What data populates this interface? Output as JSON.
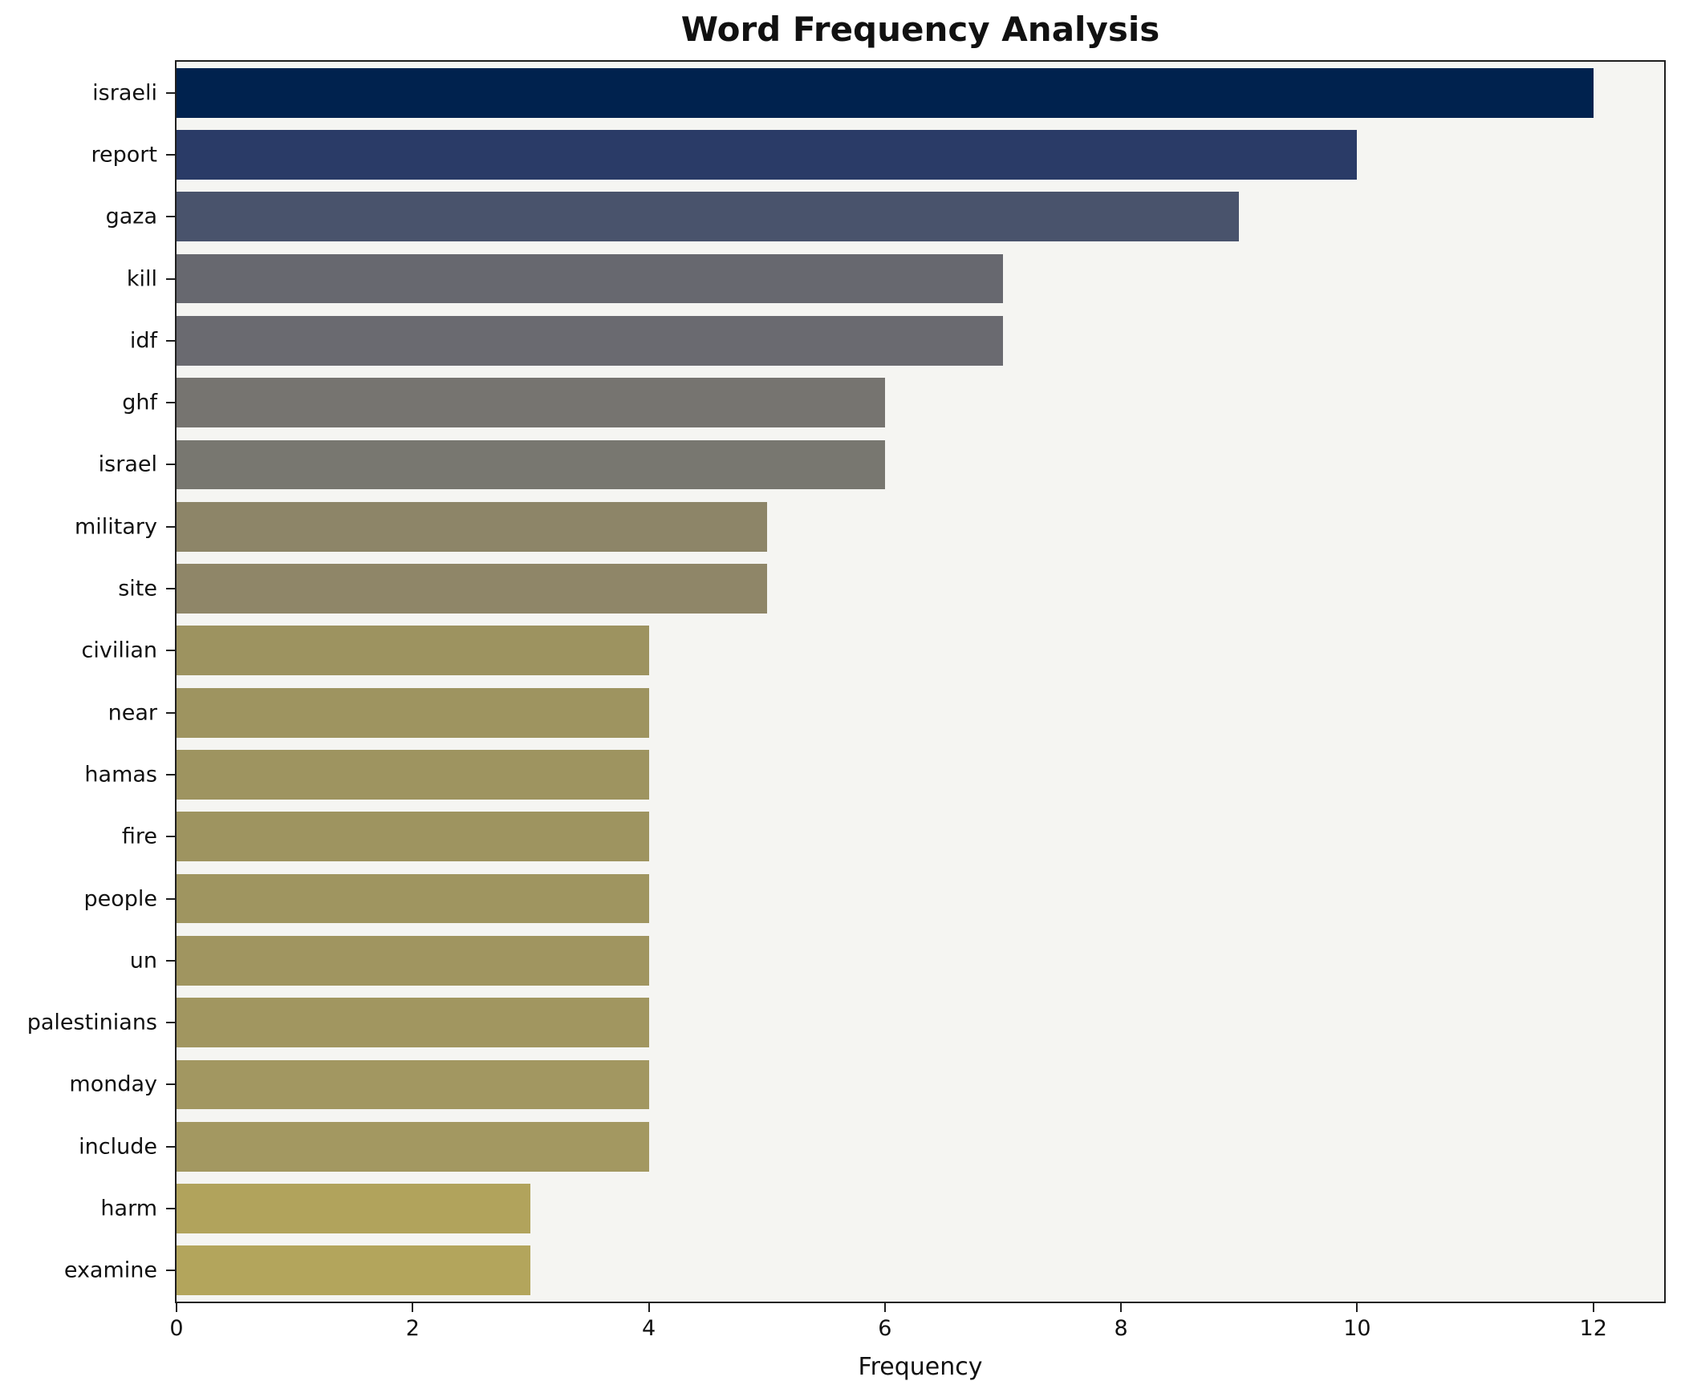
{
  "chart_data": {
    "type": "bar",
    "orientation": "horizontal",
    "title": "Word Frequency Analysis",
    "xlabel": "Frequency",
    "ylabel": "",
    "xlim": [
      0,
      12.6
    ],
    "xticks": [
      0,
      2,
      4,
      6,
      8,
      10,
      12
    ],
    "grid": false,
    "legend": "none",
    "categories": [
      "israeli",
      "report",
      "gaza",
      "kill",
      "idf",
      "ghf",
      "israel",
      "military",
      "site",
      "civilian",
      "near",
      "hamas",
      "fire",
      "people",
      "un",
      "palestinians",
      "monday",
      "include",
      "harm",
      "examine"
    ],
    "values": [
      12,
      10,
      9,
      7,
      7,
      6,
      6,
      5,
      5,
      4,
      4,
      4,
      4,
      4,
      4,
      4,
      4,
      4,
      3,
      3
    ],
    "bar_colors": [
      "#00224e",
      "#2a3b67",
      "#49536c",
      "#67686f",
      "#6a6a70",
      "#767470",
      "#787770",
      "#8d8568",
      "#8f8668",
      "#9d9360",
      "#9e9460",
      "#9e9460",
      "#9e9460",
      "#9f9560",
      "#a09560",
      "#a19660",
      "#a29761",
      "#a39861",
      "#b1a35c",
      "#b3a55c"
    ],
    "plot_background": "#f5f5f2",
    "figure_background": "#ffffff",
    "spine_color": "#1f1f1f"
  }
}
